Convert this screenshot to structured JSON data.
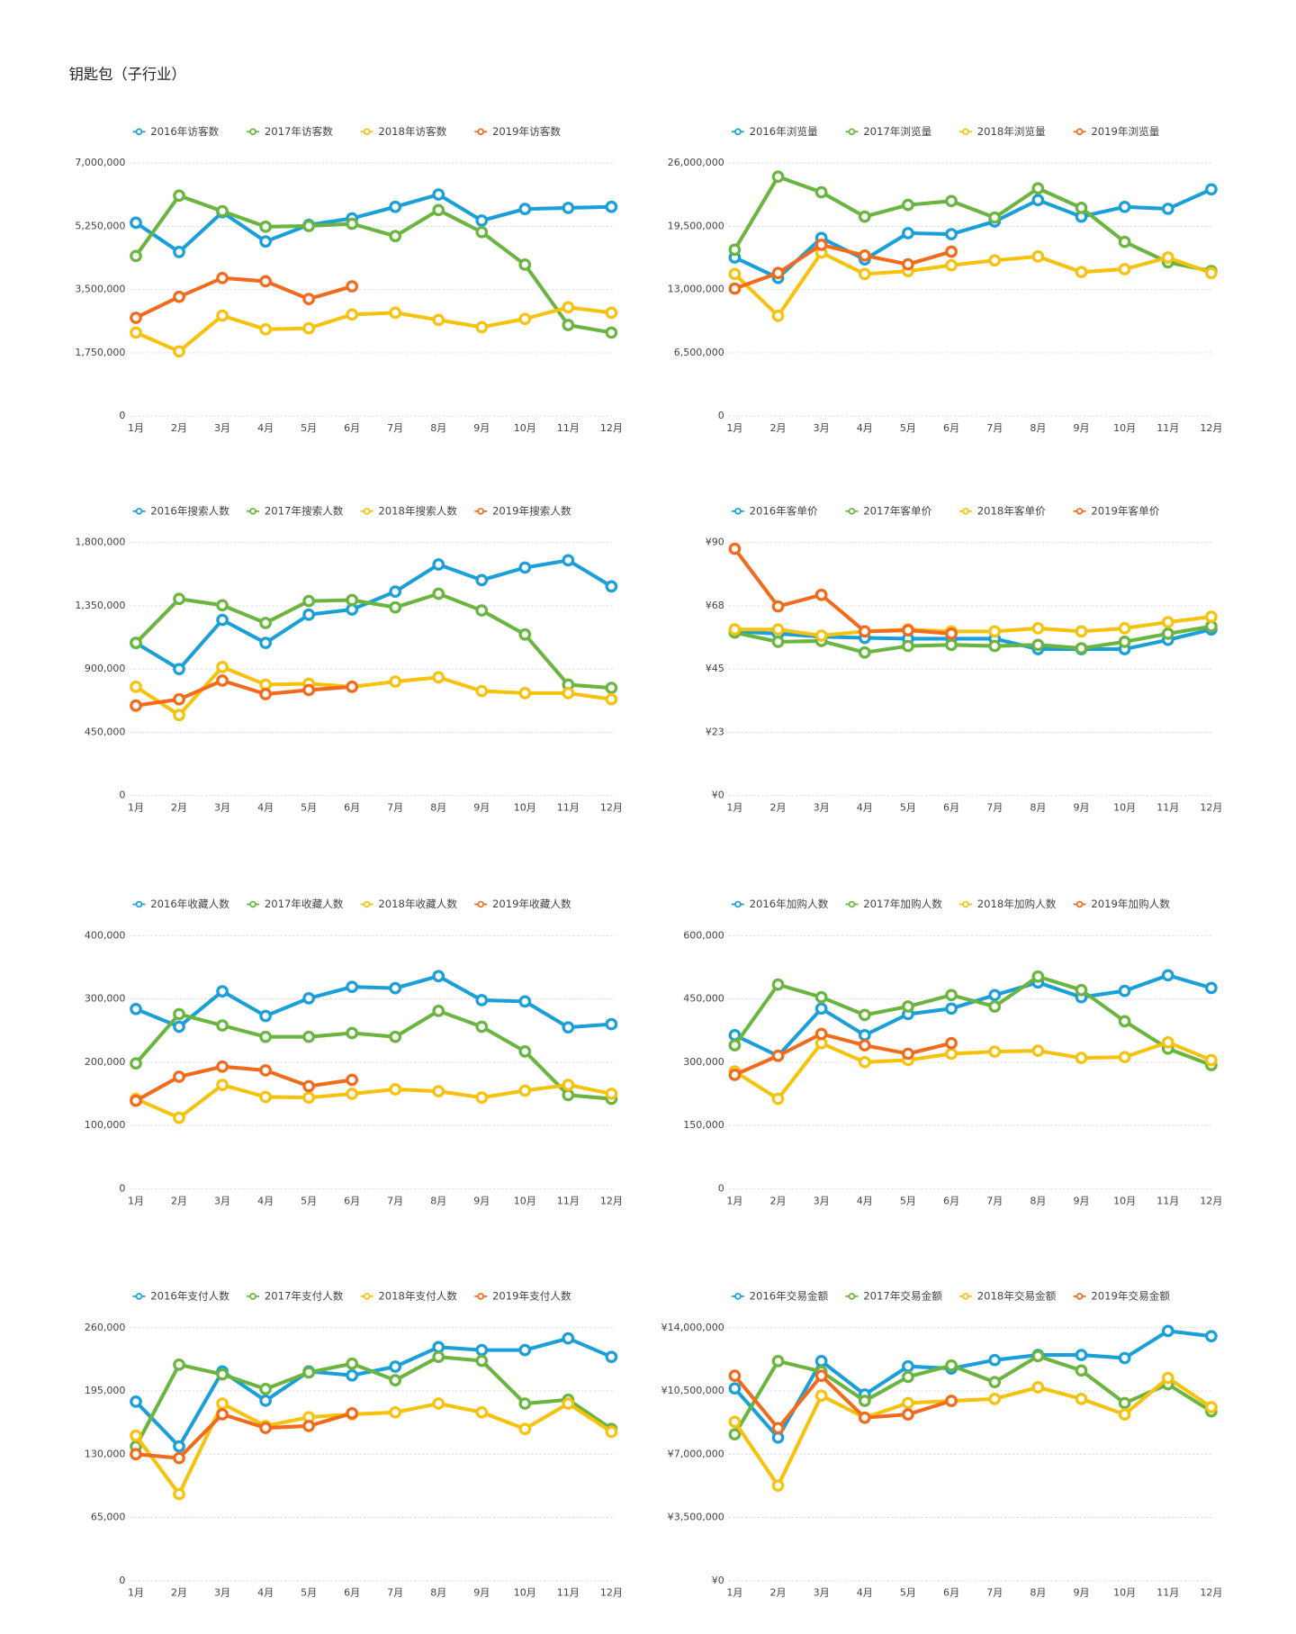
{
  "title": "钥匙包（子行业）",
  "chart_data": [
    {
      "type": "line",
      "categories": [
        "1月",
        "2月",
        "3月",
        "4月",
        "5月",
        "6月",
        "7月",
        "8月",
        "9月",
        "10月",
        "11月",
        "12月"
      ],
      "series": [
        {
          "name": "2016年访客数",
          "color": "#1a9fd9",
          "values": [
            5350000,
            4540000,
            5640000,
            4830000,
            5290000,
            5470000,
            5790000,
            6130000,
            5410000,
            5730000,
            5760000,
            5790000
          ]
        },
        {
          "name": "2017年访客数",
          "color": "#6ab53f",
          "values": [
            4430000,
            6100000,
            5670000,
            5240000,
            5260000,
            5320000,
            4980000,
            5700000,
            5090000,
            4190000,
            2520000,
            2310000
          ]
        },
        {
          "name": "2018年访客数",
          "color": "#f6c20e",
          "values": [
            2310000,
            1790000,
            2780000,
            2400000,
            2430000,
            2810000,
            2860000,
            2660000,
            2460000,
            2690000,
            3010000,
            2860000
          ]
        },
        {
          "name": "2019年访客数",
          "color": "#f26b1d",
          "values": [
            2720000,
            3300000,
            3820000,
            3730000,
            3240000,
            3590000,
            null,
            null,
            null,
            null,
            null,
            null
          ]
        }
      ],
      "ylim": [
        0,
        7000000
      ],
      "yticks": [
        0,
        {
          "value": 1750000,
          "label": "1,750,000"
        },
        {
          "value": 3500000,
          "label": "3,500,000"
        },
        {
          "value": 5250000,
          "label": "5,250,000"
        },
        {
          "value": 7000000,
          "label": "7,000,000"
        }
      ],
      "grid": true
    },
    {
      "type": "line",
      "categories": [
        "1月",
        "2月",
        "3月",
        "4月",
        "5月",
        "6月",
        "7月",
        "8月",
        "9月",
        "10月",
        "11月",
        "12月"
      ],
      "series": [
        {
          "name": "2016年浏览量",
          "color": "#1a9fd9",
          "values": [
            16300000,
            14200000,
            18300000,
            16100000,
            18800000,
            18700000,
            20000000,
            22200000,
            20500000,
            21500000,
            21300000,
            23300000
          ]
        },
        {
          "name": "2017年浏览量",
          "color": "#6ab53f",
          "values": [
            17100000,
            24600000,
            23000000,
            20500000,
            21700000,
            22100000,
            20400000,
            23400000,
            21400000,
            17900000,
            15800000,
            14900000
          ]
        },
        {
          "name": "2018年浏览量",
          "color": "#f6c20e",
          "values": [
            14600000,
            10300000,
            16800000,
            14600000,
            14900000,
            15500000,
            16000000,
            16400000,
            14800000,
            15100000,
            16300000,
            14700000
          ]
        },
        {
          "name": "2019年浏览量",
          "color": "#f26b1d",
          "values": [
            13100000,
            14700000,
            17600000,
            16500000,
            15600000,
            16900000,
            null,
            null,
            null,
            null,
            null,
            null
          ]
        }
      ],
      "ylim": [
        0,
        26000000
      ],
      "yticks": [
        0,
        {
          "value": 6500000,
          "label": "6,500,000"
        },
        {
          "value": 13000000,
          "label": "13,000,000"
        },
        {
          "value": 19500000,
          "label": "19,500,000"
        },
        {
          "value": 26000000,
          "label": "26,000,000"
        }
      ],
      "grid": true
    },
    {
      "type": "line",
      "categories": [
        "1月",
        "2月",
        "3月",
        "4月",
        "5月",
        "6月",
        "7月",
        "8月",
        "9月",
        "10月",
        "11月",
        "12月"
      ],
      "series": [
        {
          "name": "2016年搜索人数",
          "color": "#1a9fd9",
          "values": [
            1086000,
            900000,
            1250000,
            1086000,
            1287000,
            1324000,
            1451000,
            1644000,
            1533000,
            1622000,
            1674000,
            1488000
          ]
        },
        {
          "name": "2017年搜索人数",
          "color": "#6ab53f",
          "values": [
            1086000,
            1399000,
            1354000,
            1228000,
            1384000,
            1391000,
            1339000,
            1436000,
            1317000,
            1146000,
            789000,
            766000
          ]
        },
        {
          "name": "2018年搜索人数",
          "color": "#f6c20e",
          "values": [
            774000,
            573000,
            915000,
            789000,
            796000,
            774000,
            811000,
            841000,
            744000,
            729000,
            729000,
            685000
          ]
        },
        {
          "name": "2019年搜索人数",
          "color": "#f26b1d",
          "values": [
            640000,
            685000,
            818000,
            722000,
            751000,
            774000,
            null,
            null,
            null,
            null,
            null,
            null
          ]
        }
      ],
      "ylim": [
        0,
        1800000
      ],
      "yticks": [
        0,
        {
          "value": 450000,
          "label": "450,000"
        },
        {
          "value": 900000,
          "label": "900,000"
        },
        {
          "value": 1350000,
          "label": "1,350,000"
        },
        {
          "value": 1800000,
          "label": "1,800,000"
        }
      ],
      "grid": true
    },
    {
      "type": "line",
      "categories": [
        "1月",
        "2月",
        "3月",
        "4月",
        "5月",
        "6月",
        "7月",
        "8月",
        "9月",
        "10月",
        "11月",
        "12月"
      ],
      "series": [
        {
          "name": "2016年客单价",
          "color": "#1a9fd9",
          "values": [
            58.4,
            57.6,
            56.5,
            56.1,
            55.8,
            55.8,
            55.8,
            52.1,
            52.1,
            52.1,
            55.4,
            59.1
          ]
        },
        {
          "name": "2017年客单价",
          "color": "#6ab53f",
          "values": [
            58.0,
            54.7,
            55.0,
            50.9,
            53.2,
            53.6,
            53.2,
            53.6,
            52.4,
            54.7,
            57.6,
            60.2
          ]
        },
        {
          "name": "2018年客单价",
          "color": "#f6c20e",
          "values": [
            59.1,
            59.1,
            56.9,
            58.4,
            59.1,
            58.4,
            58.4,
            59.5,
            58.4,
            59.5,
            61.7,
            63.6
          ]
        },
        {
          "name": "2019年客单价",
          "color": "#f26b1d",
          "values": [
            87.8,
            67.3,
            71.4,
            58.4,
            58.8,
            57.6,
            null,
            null,
            null,
            null,
            null,
            null
          ]
        }
      ],
      "ylim": [
        0,
        90
      ],
      "yticks": [
        {
          "value": 0,
          "label": "¥0"
        },
        {
          "value": 22.5,
          "label": "¥23"
        },
        {
          "value": 45,
          "label": "¥45"
        },
        {
          "value": 67.5,
          "label": "¥68"
        },
        {
          "value": 90,
          "label": "¥90"
        }
      ],
      "grid": true
    },
    {
      "type": "line",
      "categories": [
        "1月",
        "2月",
        "3月",
        "4月",
        "5月",
        "6月",
        "7月",
        "8月",
        "9月",
        "10月",
        "11月",
        "12月"
      ],
      "series": [
        {
          "name": "2016年收藏人数",
          "color": "#1a9fd9",
          "values": [
            284000,
            256000,
            312000,
            273000,
            301000,
            319000,
            317000,
            336000,
            298000,
            296000,
            255000,
            260000
          ]
        },
        {
          "name": "2017年收藏人数",
          "color": "#6ab53f",
          "values": [
            198000,
            276000,
            258000,
            240000,
            240000,
            246000,
            240000,
            281000,
            256000,
            217000,
            148000,
            142000
          ]
        },
        {
          "name": "2018年收藏人数",
          "color": "#f6c20e",
          "values": [
            142000,
            112000,
            164000,
            145000,
            144000,
            150000,
            157000,
            154000,
            144000,
            155000,
            164000,
            150000
          ]
        },
        {
          "name": "2019年收藏人数",
          "color": "#f26b1d",
          "values": [
            139000,
            177000,
            193000,
            187000,
            162000,
            172000,
            null,
            null,
            null,
            null,
            null,
            null
          ]
        }
      ],
      "ylim": [
        0,
        400000
      ],
      "yticks": [
        0,
        {
          "value": 100000,
          "label": "100,000"
        },
        {
          "value": 200000,
          "label": "200,000"
        },
        {
          "value": 300000,
          "label": "300,000"
        },
        {
          "value": 400000,
          "label": "400,000"
        }
      ],
      "grid": true
    },
    {
      "type": "line",
      "categories": [
        "1月",
        "2月",
        "3月",
        "4月",
        "5月",
        "6月",
        "7月",
        "8月",
        "9月",
        "10月",
        "11月",
        "12月"
      ],
      "series": [
        {
          "name": "2016年加购人数",
          "color": "#1a9fd9",
          "values": [
            364000,
            315000,
            427000,
            364000,
            414000,
            427000,
            459000,
            489000,
            454000,
            469000,
            506000,
            476000
          ]
        },
        {
          "name": "2017年加购人数",
          "color": "#6ab53f",
          "values": [
            340000,
            484000,
            454000,
            412000,
            432000,
            459000,
            432000,
            503000,
            471000,
            397000,
            332000,
            293000
          ]
        },
        {
          "name": "2018年加购人数",
          "color": "#f6c20e",
          "values": [
            278000,
            213000,
            345000,
            300000,
            305000,
            320000,
            325000,
            327000,
            310000,
            312000,
            347000,
            305000
          ]
        },
        {
          "name": "2019年加购人数",
          "color": "#f26b1d",
          "values": [
            270000,
            315000,
            367000,
            340000,
            320000,
            345000,
            null,
            null,
            null,
            null,
            null,
            null
          ]
        }
      ],
      "ylim": [
        0,
        600000
      ],
      "yticks": [
        0,
        {
          "value": 150000,
          "label": "150,000"
        },
        {
          "value": 300000,
          "label": "300,000"
        },
        {
          "value": 450000,
          "label": "450,000"
        },
        {
          "value": 600000,
          "label": "600,000"
        }
      ],
      "grid": true
    },
    {
      "type": "line",
      "categories": [
        "1月",
        "2月",
        "3月",
        "4月",
        "5月",
        "6月",
        "7月",
        "8月",
        "9月",
        "10月",
        "11月",
        "12月"
      ],
      "series": [
        {
          "name": "2016年支付人数",
          "color": "#1a9fd9",
          "values": [
            184000,
            138000,
            215000,
            185000,
            215000,
            211000,
            220000,
            240000,
            237000,
            237000,
            249000,
            230000
          ]
        },
        {
          "name": "2017年支付人数",
          "color": "#6ab53f",
          "values": [
            138000,
            222000,
            212000,
            197000,
            214000,
            223000,
            206000,
            230000,
            226000,
            182000,
            186000,
            156000
          ]
        },
        {
          "name": "2018年支付人数",
          "color": "#f6c20e",
          "values": [
            149000,
            89000,
            182000,
            159000,
            168000,
            171000,
            173000,
            182000,
            173000,
            156000,
            182000,
            153000
          ]
        },
        {
          "name": "2019年支付人数",
          "color": "#f26b1d",
          "values": [
            130000,
            126000,
            171000,
            157000,
            159000,
            172000,
            null,
            null,
            null,
            null,
            null,
            null
          ]
        }
      ],
      "ylim": [
        0,
        260000
      ],
      "yticks": [
        0,
        {
          "value": 65000,
          "label": "65,000"
        },
        {
          "value": 130000,
          "label": "130,000"
        },
        {
          "value": 195000,
          "label": "195,000"
        },
        {
          "value": 260000,
          "label": "260,000"
        }
      ],
      "grid": true
    },
    {
      "type": "line",
      "categories": [
        "1月",
        "2月",
        "3月",
        "4月",
        "5月",
        "6月",
        "7月",
        "8月",
        "9月",
        "10月",
        "11月",
        "12月"
      ],
      "series": [
        {
          "name": "2016年交易金额",
          "color": "#1a9fd9",
          "values": [
            10640000,
            7920000,
            12150000,
            10300000,
            11860000,
            11740000,
            12210000,
            12490000,
            12490000,
            12320000,
            13820000,
            13530000
          ]
        },
        {
          "name": "2017年交易金额",
          "color": "#6ab53f",
          "values": [
            8100000,
            12150000,
            11570000,
            9950000,
            11280000,
            11910000,
            10990000,
            12430000,
            11630000,
            9830000,
            10870000,
            9370000
          ]
        },
        {
          "name": "2018年交易金额",
          "color": "#f6c20e",
          "values": [
            8790000,
            5260000,
            10240000,
            9020000,
            9830000,
            9950000,
            10060000,
            10700000,
            10060000,
            9200000,
            11220000,
            9600000
          ]
        },
        {
          "name": "2019年交易金额",
          "color": "#f26b1d",
          "values": [
            11340000,
            8440000,
            11340000,
            9020000,
            9200000,
            9950000,
            null,
            null,
            null,
            null,
            null,
            null
          ]
        }
      ],
      "ylim": [
        0,
        14000000
      ],
      "yticks": [
        {
          "value": 0,
          "label": "¥0"
        },
        {
          "value": 3500000,
          "label": "¥3,500,000"
        },
        {
          "value": 7000000,
          "label": "¥7,000,000"
        },
        {
          "value": 10500000,
          "label": "¥10,500,000"
        },
        {
          "value": 14000000,
          "label": "¥14,000,000"
        }
      ],
      "grid": true
    }
  ]
}
